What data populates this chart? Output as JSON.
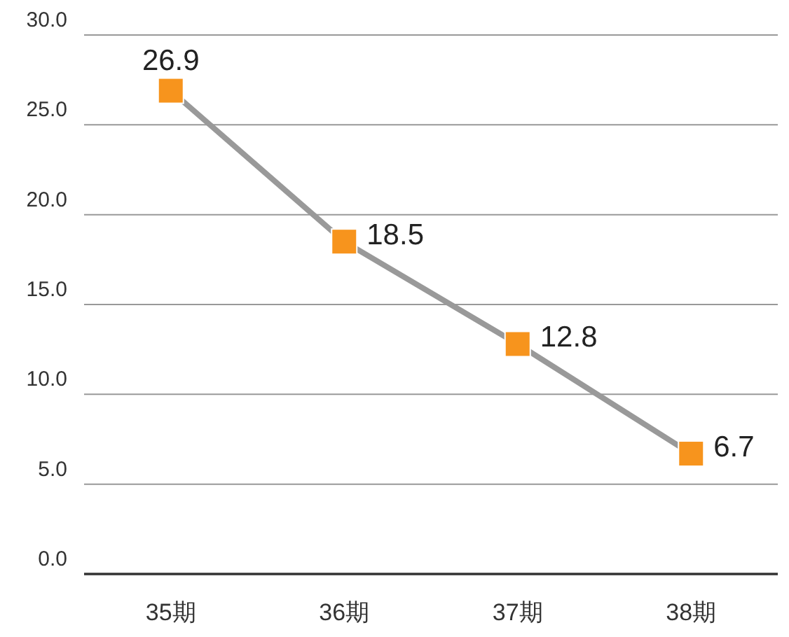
{
  "chart_data": {
    "type": "line",
    "categories": [
      "35期",
      "36期",
      "37期",
      "38期"
    ],
    "series": [
      {
        "color": "#f7941d",
        "values": [
          26.9,
          18.5,
          12.8,
          6.7
        ]
      }
    ],
    "ylim": [
      0,
      30
    ],
    "yticks": [
      {
        "value": 0,
        "label": "0.0"
      },
      {
        "value": 5,
        "label": "5.0"
      },
      {
        "value": 10,
        "label": "10.0"
      },
      {
        "value": 15,
        "label": "15.0"
      },
      {
        "value": 20,
        "label": "20.0"
      },
      {
        "value": 25,
        "label": "25.0"
      },
      {
        "value": 30,
        "label": "30.0"
      }
    ],
    "grid": "y",
    "marker": "square",
    "line_style": "solid",
    "data_labels": true
  }
}
